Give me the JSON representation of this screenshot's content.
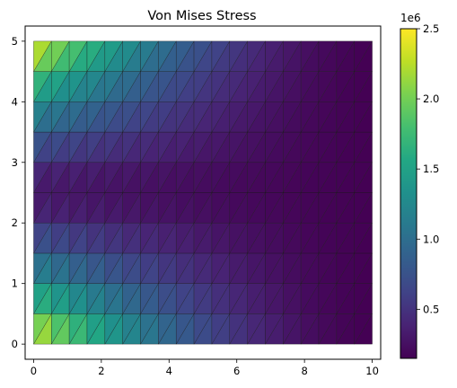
{
  "chart_data": {
    "type": "heatmap",
    "title": "Von Mises Stress",
    "xlabel": "",
    "ylabel": "",
    "xlim": [
      -0.25,
      10.25
    ],
    "ylim": [
      -0.25,
      5.25
    ],
    "x_ticks": [
      0,
      2,
      4,
      6,
      8,
      10
    ],
    "y_ticks": [
      0,
      1,
      2,
      3,
      4,
      5
    ],
    "grid": false,
    "mesh": {
      "element": "triangle",
      "nodes_x": [
        0,
        0.526,
        1.053,
        1.579,
        2.105,
        2.632,
        3.158,
        3.684,
        4.211,
        4.737,
        5.263,
        5.789,
        6.316,
        6.842,
        7.368,
        7.895,
        8.421,
        8.947,
        9.474,
        10
      ],
      "nodes_y": [
        0,
        0.5,
        1.0,
        1.5,
        2.0,
        2.5,
        3.0,
        3.5,
        4.0,
        4.5,
        5.0
      ]
    },
    "value_range": [
      150000,
      2500000
    ],
    "colormap": "viridis",
    "colorbar": {
      "ticks": [
        0.5,
        1.0,
        1.5,
        2.0,
        2.5
      ],
      "offset_text": "1e6"
    },
    "colorbar_ticks": [
      0.5,
      1.0,
      1.5,
      2.0,
      2.5
    ],
    "colorbar_exponent": "1e6",
    "colorbar_range": [
      0.15,
      2.5
    ]
  }
}
